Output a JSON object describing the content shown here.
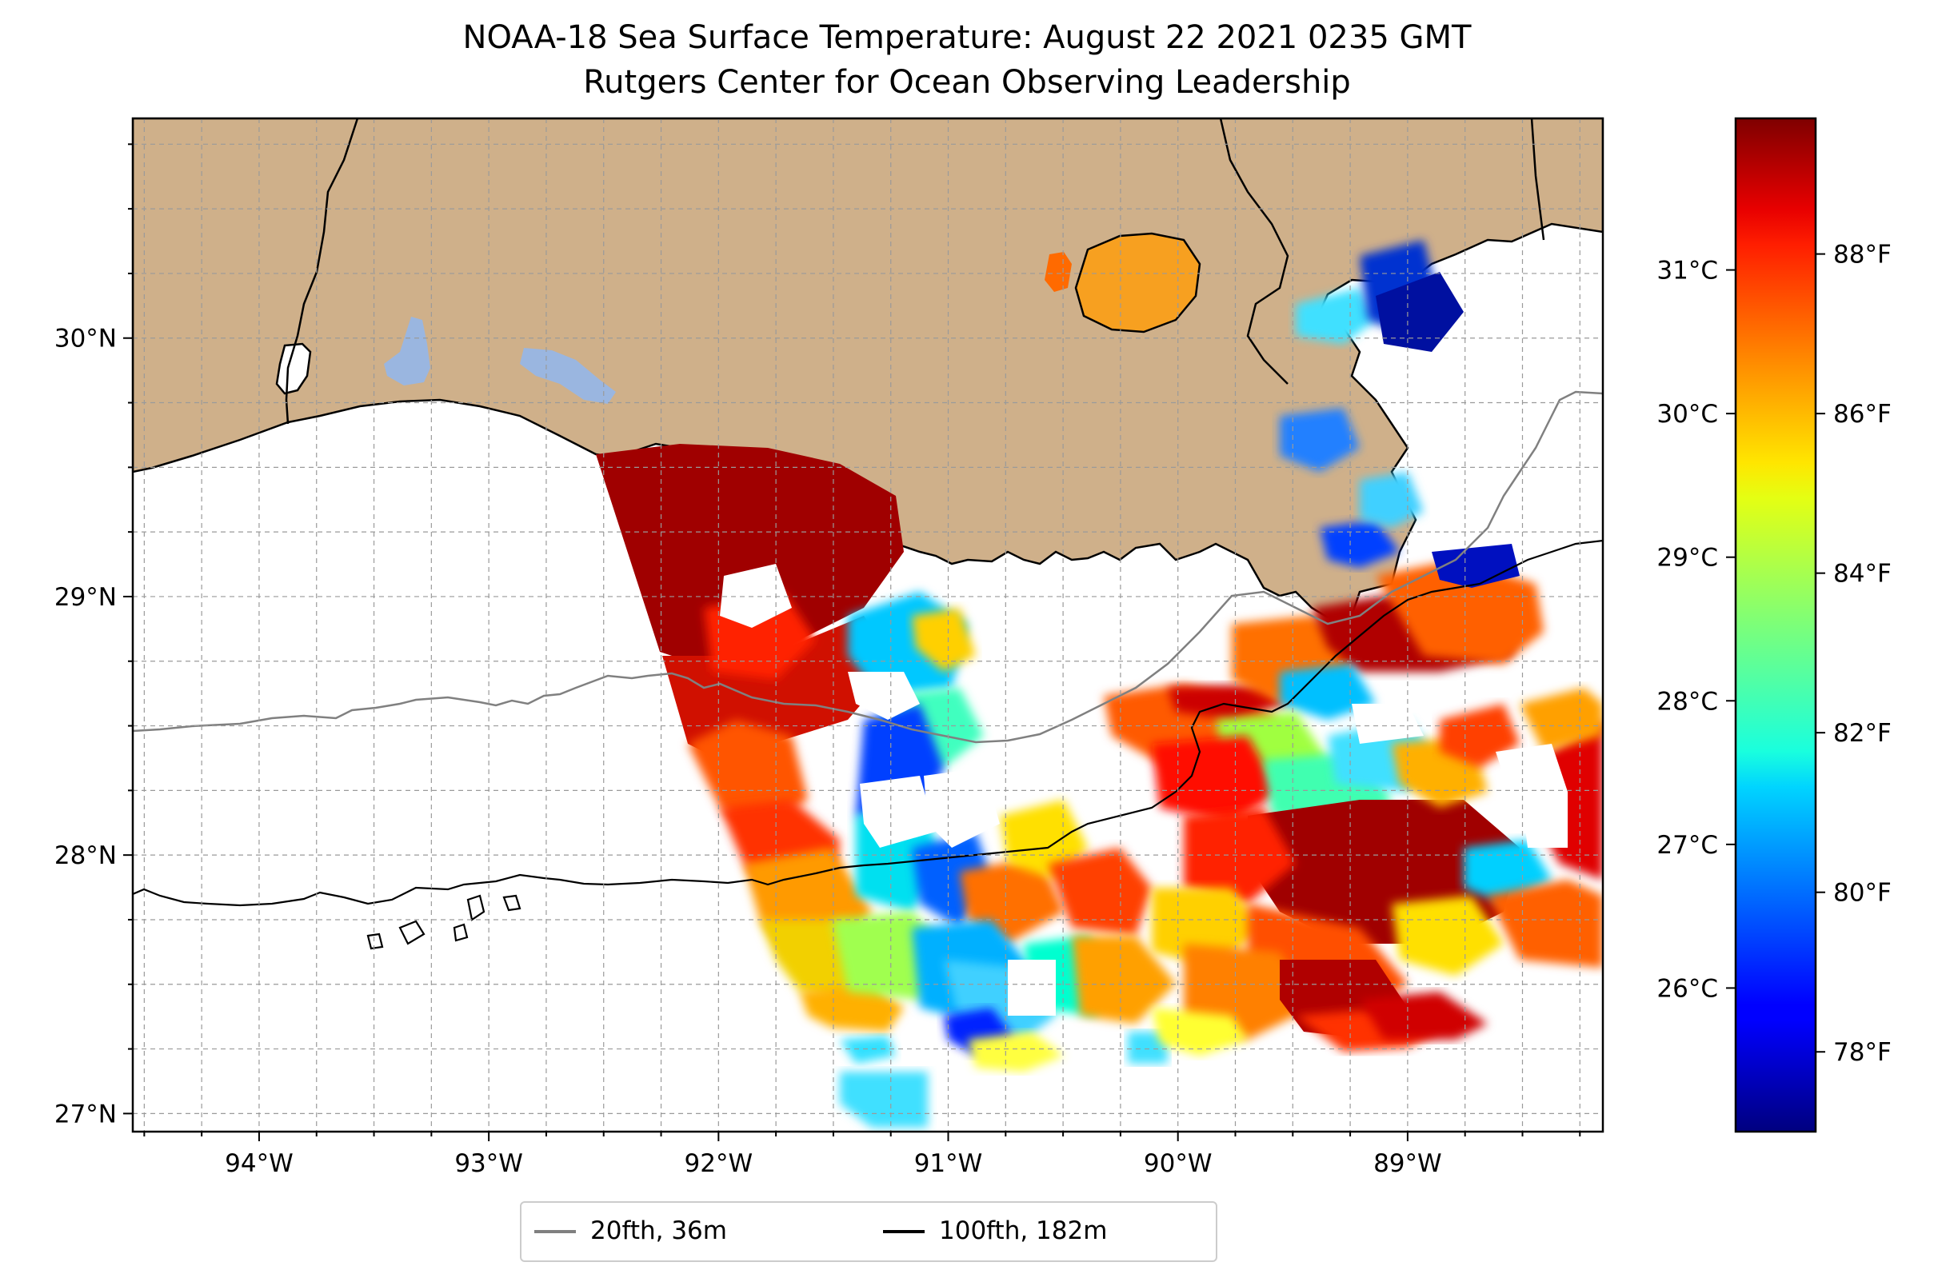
{
  "title": {
    "line1": "NOAA-18 Sea Surface Temperature: August 22 2021 0235 GMT",
    "line2": "Rutgers Center for Ocean Observing Leadership"
  },
  "map": {
    "lon_range": [
      -94.55,
      -88.15
    ],
    "lat_range": [
      26.93,
      30.85
    ],
    "lat_ticks": [
      {
        "value": 27,
        "label": "27°N"
      },
      {
        "value": 28,
        "label": "28°N"
      },
      {
        "value": 29,
        "label": "29°N"
      },
      {
        "value": 30,
        "label": "30°N"
      }
    ],
    "lon_ticks": [
      {
        "value": -94,
        "label": "94°W"
      },
      {
        "value": -93,
        "label": "93°W"
      },
      {
        "value": -92,
        "label": "92°W"
      },
      {
        "value": -91,
        "label": "91°W"
      },
      {
        "value": -90,
        "label": "90°W"
      },
      {
        "value": -89,
        "label": "89°W"
      }
    ],
    "gridlines": true,
    "land_color": "#cfb08a",
    "inland_water_color": "#9ab6e0"
  },
  "colorbar": {
    "colormap": "jet",
    "range_f": [
      77.0,
      89.7
    ],
    "celsius_ticks": [
      {
        "value": 26,
        "label": "26°C"
      },
      {
        "value": 27,
        "label": "27°C"
      },
      {
        "value": 28,
        "label": "28°C"
      },
      {
        "value": 29,
        "label": "29°C"
      },
      {
        "value": 30,
        "label": "30°C"
      },
      {
        "value": 31,
        "label": "31°C"
      }
    ],
    "fahrenheit_ticks": [
      {
        "value": 78,
        "label": "78°F"
      },
      {
        "value": 80,
        "label": "80°F"
      },
      {
        "value": 82,
        "label": "82°F"
      },
      {
        "value": 84,
        "label": "84°F"
      },
      {
        "value": 86,
        "label": "86°F"
      },
      {
        "value": 88,
        "label": "88°F"
      }
    ]
  },
  "legend": {
    "placement": "bottom-center",
    "items": [
      {
        "label": "20fth, 36m",
        "color": "#808080"
      },
      {
        "label": "100fth, 182m",
        "color": "#000000"
      }
    ]
  }
}
